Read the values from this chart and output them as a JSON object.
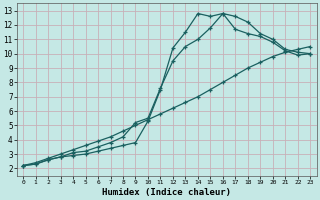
{
  "xlabel": "Humidex (Indice chaleur)",
  "bg_color": "#c5e8e5",
  "grid_color": "#c8b0b8",
  "line_color": "#1a6060",
  "xlim": [
    -0.5,
    23.5
  ],
  "ylim": [
    1.5,
    13.5
  ],
  "xticks": [
    0,
    1,
    2,
    3,
    4,
    5,
    6,
    7,
    8,
    9,
    10,
    11,
    12,
    13,
    14,
    15,
    16,
    17,
    18,
    19,
    20,
    21,
    22,
    23
  ],
  "yticks": [
    2,
    3,
    4,
    5,
    6,
    7,
    8,
    9,
    10,
    11,
    12,
    13
  ],
  "line1_x": [
    0,
    1,
    2,
    3,
    4,
    5,
    6,
    7,
    8,
    9,
    10,
    11,
    12,
    13,
    14,
    15,
    16,
    17,
    18,
    19,
    20,
    21,
    22,
    23
  ],
  "line1_y": [
    2.2,
    2.3,
    2.6,
    2.8,
    2.9,
    3.0,
    3.2,
    3.4,
    3.6,
    3.8,
    5.3,
    7.5,
    10.4,
    11.5,
    12.8,
    12.6,
    12.8,
    12.6,
    12.2,
    11.4,
    11.0,
    10.3,
    10.1,
    10.0
  ],
  "line2_x": [
    0,
    1,
    2,
    3,
    4,
    5,
    6,
    7,
    8,
    9,
    10,
    11,
    12,
    13,
    14,
    15,
    16,
    17,
    18,
    19,
    20,
    21,
    22,
    23
  ],
  "line2_y": [
    2.2,
    2.3,
    2.6,
    2.8,
    3.1,
    3.2,
    3.5,
    3.8,
    4.2,
    5.2,
    5.5,
    7.6,
    9.5,
    10.5,
    11.0,
    11.8,
    12.8,
    11.7,
    11.4,
    11.2,
    10.8,
    10.2,
    9.9,
    10.0
  ],
  "line3_x": [
    0,
    1,
    2,
    3,
    4,
    5,
    6,
    7,
    8,
    9,
    10,
    11,
    12,
    13,
    14,
    15,
    16,
    17,
    18,
    19,
    20,
    21,
    22,
    23
  ],
  "line3_y": [
    2.2,
    2.4,
    2.7,
    3.0,
    3.3,
    3.6,
    3.9,
    4.2,
    4.6,
    5.0,
    5.4,
    5.8,
    6.2,
    6.6,
    7.0,
    7.5,
    8.0,
    8.5,
    9.0,
    9.4,
    9.8,
    10.1,
    10.3,
    10.5
  ]
}
